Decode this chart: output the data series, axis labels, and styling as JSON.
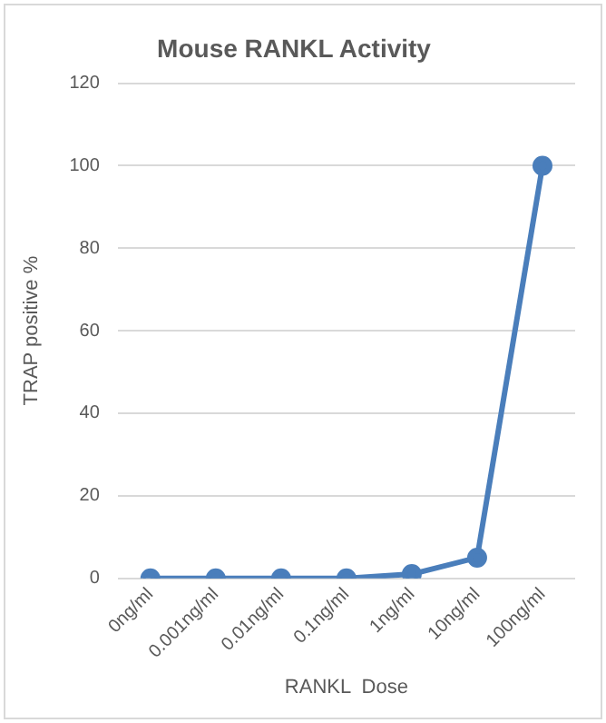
{
  "chart_data": {
    "type": "line",
    "title": "Mouse RANKL Activity",
    "xlabel": "RANKL  Dose",
    "ylabel": "TRAP positive %",
    "categories": [
      "0ng/ml",
      "0.001ng/ml",
      "0.01ng/ml",
      "0.1ng/ml",
      "1ng/ml",
      "10ng/ml",
      "100ng/ml"
    ],
    "series": [
      {
        "color": "#4a7ebb",
        "values": [
          0,
          0,
          0,
          0,
          1,
          5,
          100
        ]
      }
    ],
    "ylim": [
      0,
      120
    ],
    "yticks": [
      0,
      20,
      40,
      60,
      80,
      100,
      120
    ],
    "grid": "y",
    "marker": "circle",
    "line_style": "solid",
    "legend": false
  }
}
